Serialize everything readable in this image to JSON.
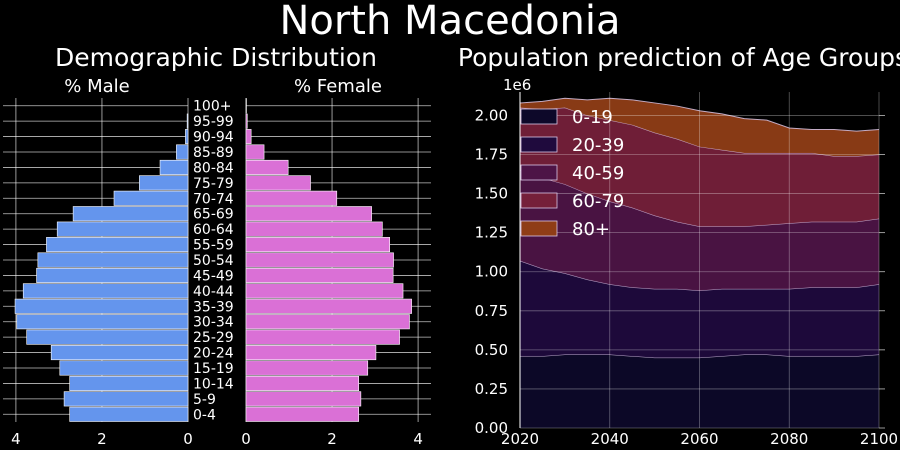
{
  "title": "North Macedonia",
  "chart_data": [
    {
      "type": "bar",
      "orientation": "horizontal-population-pyramid",
      "title": "Demographic Distribution",
      "categories": [
        "0-4",
        "5-9",
        "10-14",
        "15-19",
        "20-24",
        "25-29",
        "30-34",
        "35-39",
        "40-44",
        "45-49",
        "50-54",
        "55-59",
        "60-64",
        "65-69",
        "70-74",
        "75-79",
        "80-84",
        "85-89",
        "90-94",
        "95-99",
        "100+"
      ],
      "series": [
        {
          "name": "% Male",
          "color": "#6495ed",
          "values": [
            2.75,
            2.88,
            2.75,
            2.98,
            3.18,
            3.75,
            3.98,
            4.02,
            3.83,
            3.52,
            3.49,
            3.29,
            3.04,
            2.67,
            1.72,
            1.13,
            0.65,
            0.27,
            0.06,
            0.02,
            0.0
          ]
        },
        {
          "name": "% Female",
          "color": "#da70d6",
          "values": [
            2.62,
            2.67,
            2.62,
            2.83,
            3.02,
            3.57,
            3.8,
            3.85,
            3.65,
            3.42,
            3.43,
            3.34,
            3.17,
            2.92,
            2.11,
            1.5,
            0.98,
            0.42,
            0.12,
            0.03,
            0.01
          ]
        }
      ],
      "xlim": [
        0,
        4.3
      ],
      "xticks": [
        0,
        2,
        4
      ]
    },
    {
      "type": "area",
      "stacked": true,
      "title": "Population prediction of Age Groups",
      "ylabel_offset": "1e6",
      "x": [
        2020,
        2025,
        2030,
        2035,
        2040,
        2045,
        2050,
        2055,
        2060,
        2065,
        2070,
        2075,
        2080,
        2085,
        2090,
        2095,
        2100
      ],
      "xlim": [
        2020,
        2100
      ],
      "ylim": [
        0,
        2.15
      ],
      "xticks": [
        2020,
        2040,
        2060,
        2080,
        2100
      ],
      "yticks": [
        "0.00",
        "0.25",
        "0.50",
        "0.75",
        "1.00",
        "1.25",
        "1.50",
        "1.75",
        "2.00"
      ],
      "legend_position": "top-left",
      "series": [
        {
          "name": "0-19",
          "color": "#0d0829",
          "values": [
            0.46,
            0.46,
            0.47,
            0.47,
            0.47,
            0.46,
            0.45,
            0.45,
            0.45,
            0.46,
            0.47,
            0.47,
            0.46,
            0.46,
            0.46,
            0.46,
            0.47
          ]
        },
        {
          "name": "20-39",
          "color": "#1f0a3d",
          "values": [
            0.61,
            0.56,
            0.52,
            0.48,
            0.45,
            0.44,
            0.44,
            0.44,
            0.43,
            0.43,
            0.42,
            0.42,
            0.43,
            0.44,
            0.44,
            0.44,
            0.45
          ]
        },
        {
          "name": "40-59",
          "color": "#4d1446",
          "values": [
            0.58,
            0.58,
            0.57,
            0.55,
            0.53,
            0.51,
            0.47,
            0.43,
            0.41,
            0.4,
            0.4,
            0.41,
            0.42,
            0.42,
            0.42,
            0.42,
            0.42
          ]
        },
        {
          "name": "60-79",
          "color": "#75203a",
          "values": [
            0.4,
            0.44,
            0.49,
            0.5,
            0.52,
            0.53,
            0.53,
            0.53,
            0.51,
            0.49,
            0.47,
            0.46,
            0.45,
            0.44,
            0.42,
            0.42,
            0.41
          ]
        },
        {
          "name": "80+",
          "color": "#8f3d16",
          "values": [
            0.03,
            0.05,
            0.06,
            0.1,
            0.14,
            0.16,
            0.19,
            0.21,
            0.23,
            0.23,
            0.22,
            0.21,
            0.16,
            0.15,
            0.17,
            0.16,
            0.16
          ]
        }
      ]
    }
  ],
  "pyramid_labels": {
    "male": "% Male",
    "female": "% Female"
  }
}
